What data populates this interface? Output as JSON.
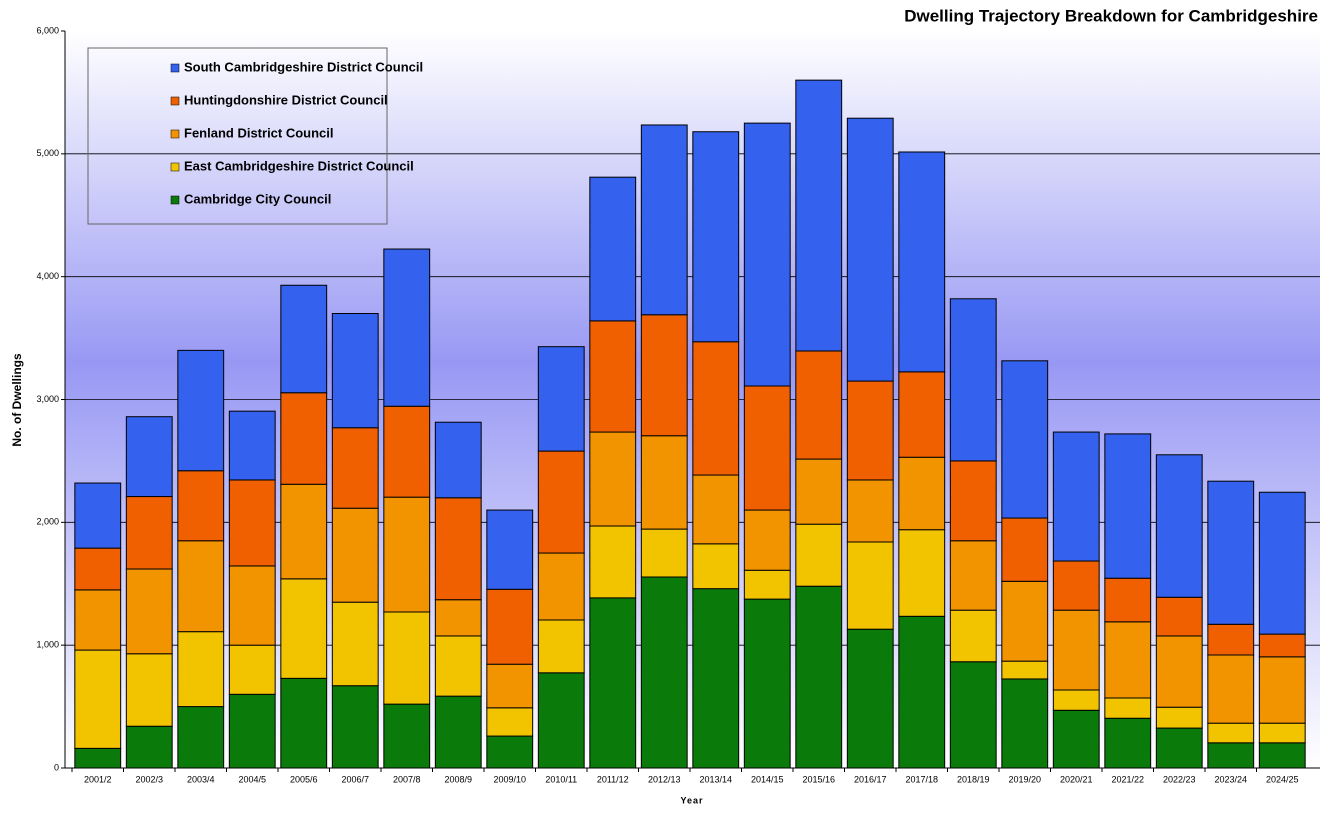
{
  "chart_data": {
    "type": "stacked_bar",
    "title": "Dwelling Trajectory Breakdown for Cambridgeshire",
    "y_label": "No. of Dwellings",
    "x_label": "Year",
    "categories": [
      "2001/2",
      "2002/3",
      "2003/4",
      "2004/5",
      "2005/6",
      "2006/7",
      "2007/8",
      "2008/9",
      "2009/10",
      "2010/11",
      "2011/12",
      "2012/13",
      "2013/14",
      "2014/15",
      "2015/16",
      "2016/17",
      "2017/18",
      "2018/19",
      "2019/20",
      "2020/21",
      "2021/22",
      "2022/23",
      "2023/24",
      "2024/25"
    ],
    "series": [
      {
        "name": "Cambridge City Council",
        "color": "#0a7a0a",
        "values": [
          160,
          340,
          500,
          600,
          730,
          670,
          520,
          585,
          260,
          775,
          1385,
          1555,
          1460,
          1375,
          1480,
          1130,
          1235,
          865,
          725,
          470,
          405,
          325,
          205,
          205
        ]
      },
      {
        "name": "East Cambridgeshire District Council",
        "color": "#f2c400",
        "values": [
          800,
          590,
          610,
          400,
          810,
          680,
          750,
          490,
          230,
          430,
          585,
          390,
          365,
          235,
          505,
          710,
          705,
          420,
          145,
          165,
          165,
          170,
          160,
          160
        ]
      },
      {
        "name": "Fenland District Council",
        "color": "#f29400",
        "values": [
          490,
          690,
          740,
          645,
          770,
          765,
          935,
          295,
          355,
          545,
          765,
          760,
          560,
          490,
          530,
          505,
          590,
          565,
          650,
          650,
          620,
          580,
          555,
          540
        ]
      },
      {
        "name": "Huntingdonshire District Council",
        "color": "#f06000",
        "values": [
          340,
          590,
          570,
          700,
          745,
          655,
          740,
          830,
          610,
          830,
          905,
          985,
          1085,
          1010,
          880,
          805,
          695,
          650,
          515,
          400,
          355,
          315,
          250,
          185
        ]
      },
      {
        "name": "South Cambridgeshire District Council",
        "color": "#3462ee",
        "values": [
          530,
          650,
          980,
          560,
          875,
          930,
          1280,
          615,
          645,
          850,
          1170,
          1545,
          1710,
          2140,
          2205,
          2140,
          1790,
          1320,
          1280,
          1050,
          1175,
          1160,
          1165,
          1155
        ]
      }
    ],
    "ylim": [
      0,
      6000
    ],
    "yticks": [
      0,
      {
        "value": 1000,
        "label": "1,000"
      },
      {
        "value": 2000,
        "label": "2,000"
      },
      {
        "value": 3000,
        "label": "3,000"
      },
      {
        "value": 4000,
        "label": "4,000"
      },
      {
        "value": 5000,
        "label": "5,000"
      },
      {
        "value": 6000,
        "label": "6,000"
      }
    ],
    "grid": true,
    "legend": "top-left"
  }
}
